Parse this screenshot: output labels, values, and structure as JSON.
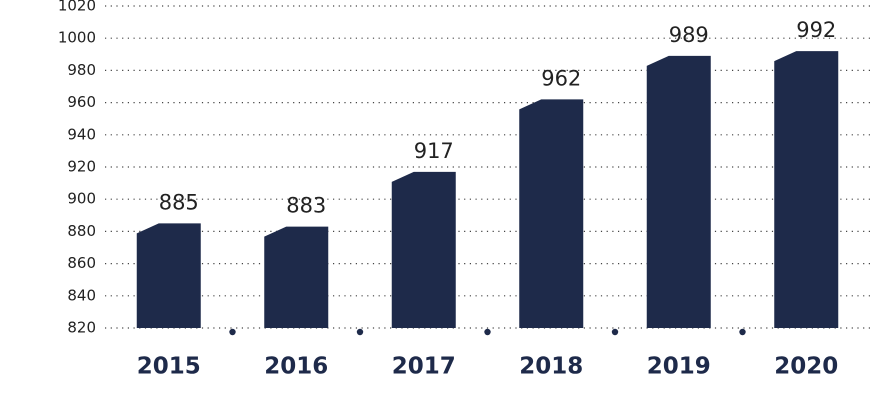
{
  "chart_data": {
    "type": "bar",
    "categories": [
      "2015",
      "2016",
      "2017",
      "2018",
      "2019",
      "2020"
    ],
    "values": [
      885,
      883,
      917,
      962,
      989,
      992
    ],
    "color": "#1e2a4a",
    "ylim": [
      820,
      1020
    ],
    "yticks": [
      820,
      840,
      860,
      880,
      900,
      920,
      940,
      960,
      980,
      1000,
      1020
    ],
    "grid": true
  }
}
